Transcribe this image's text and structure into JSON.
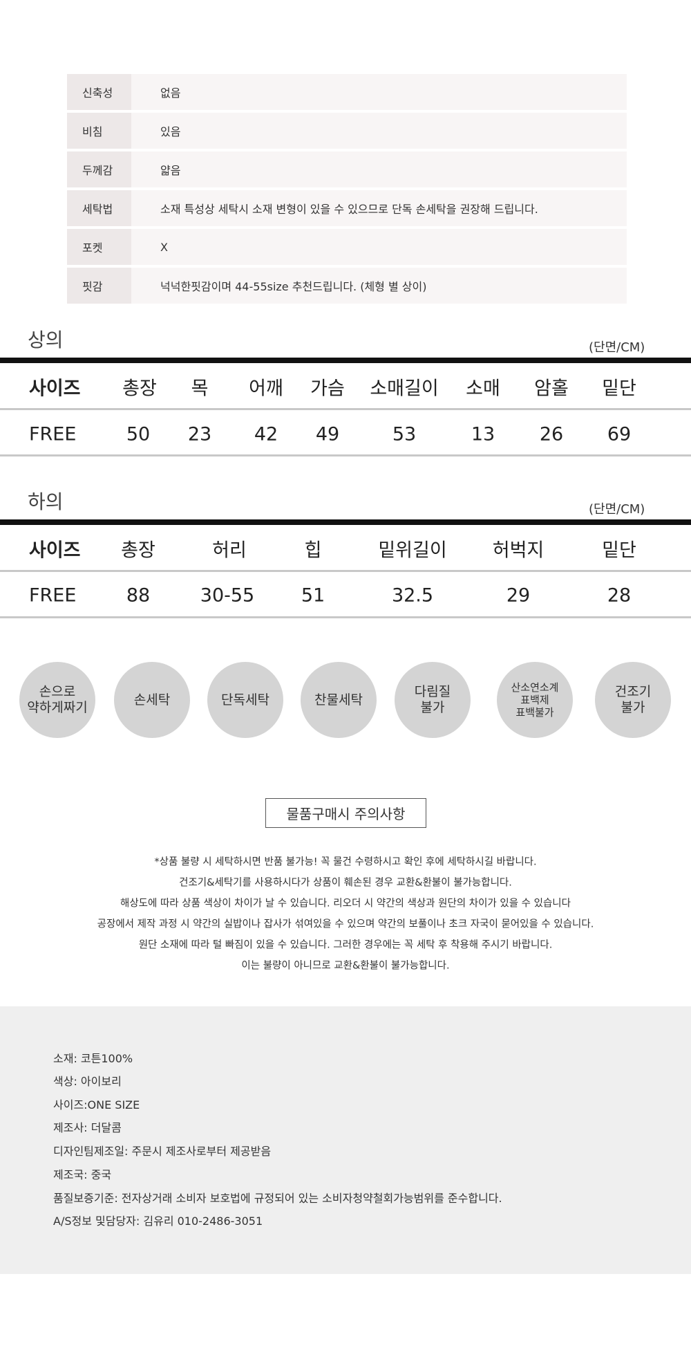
{
  "spec_table": [
    {
      "label": "신축성",
      "value": "없음"
    },
    {
      "label": "비침",
      "value": "있음"
    },
    {
      "label": "두께감",
      "value": "얇음"
    },
    {
      "label": "세탁법",
      "value": "소재 특성상 세탁시 소재 변형이 있을 수 있으므로 단독 손세탁을 권장해 드립니다."
    },
    {
      "label": "포켓",
      "value": "X"
    },
    {
      "label": "핏감",
      "value": "넉넉한핏감이며 44-55size 추천드립니다. (체형 별 상이)"
    }
  ],
  "top_size": {
    "title": "상의",
    "unit": "(단면/CM)",
    "headers": [
      "사이즈",
      "총장",
      "목",
      "어깨",
      "가슴",
      "소매길이",
      "소매",
      "암홀",
      "밑단"
    ],
    "row": [
      "FREE",
      "50",
      "23",
      "42",
      "49",
      "53",
      "13",
      "26",
      "69"
    ]
  },
  "bottom_size": {
    "title": "하의",
    "unit": "(단면/CM)",
    "headers": [
      "사이즈",
      "총장",
      "허리",
      "힙",
      "밑위길이",
      "허벅지",
      "밑단"
    ],
    "row": [
      "FREE",
      "88",
      "30-55",
      "51",
      "32.5",
      "29",
      "28"
    ]
  },
  "care_icons": [
    "손으로\n약하게짜기",
    "손세탁",
    "단독세탁",
    "찬물세탁",
    "다림질\n불가",
    "산소연소계\n표백제\n표백불가",
    "건조기\n불가"
  ],
  "notice": {
    "title": "물품구매시 주의사항",
    "lines": [
      "*상품 불량 시 세탁하시면 반품 불가능! 꼭 물건 수령하시고 확인 후에 세탁하시길 바랍니다.",
      "건조기&세탁기를 사용하시다가 상품이 훼손된 경우 교환&환불이 불가능합니다.",
      "해상도에 따라 상품 색상이 차이가 날 수 있습니다. 리오더 시 약간의 색상과 원단의 차이가 있을 수 있습니다",
      "공장에서 제작 과정 시 약간의 실밥이나 잡사가 섞여있을 수 있으며 약간의 보풀이나 초크 자국이 묻어있을 수 있습니다.",
      "원단 소재에 따라 털 빠짐이 있을 수 있습니다. 그러한 경우에는 꼭 세탁 후 착용해 주시기 바랍니다.",
      "이는 불량이 아니므로 교환&환불이 불가능합니다."
    ]
  },
  "product_info": [
    "소재: 코튼100%",
    "색상: 아이보리",
    "사이즈:ONE SIZE",
    "제조사: 더달콤",
    "디자인팀제조일: 주문시 제조사로부터 제공받음",
    "제조국: 중국",
    "품질보증기준: 전자상거래 소비자 보호법에 규정되어 있는 소비자청약철회가능범위를 준수합니다.",
    "A/S정보 및담당자: 김유리 010-2486-3051"
  ]
}
